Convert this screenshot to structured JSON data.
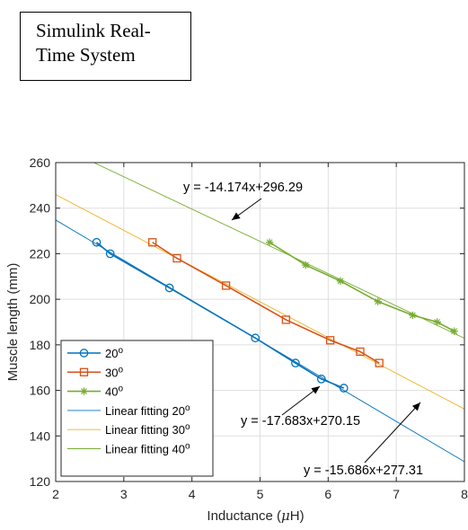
{
  "system_box": {
    "line1": "Simulink Real-",
    "line2": "Time System"
  },
  "chart_data": {
    "type": "line",
    "xlabel": "Inductance (μH)",
    "ylabel": "Muscle length (mm)",
    "xlim": [
      2,
      8
    ],
    "ylim": [
      120,
      260
    ],
    "xticks": [
      2,
      3,
      4,
      5,
      6,
      7,
      8
    ],
    "yticks": [
      120,
      140,
      160,
      180,
      200,
      220,
      240,
      260
    ],
    "grid": true,
    "legend_position": "bottom-left",
    "series": [
      {
        "name": "20°",
        "color": "#0072BD",
        "marker": "circle",
        "x": [
          2.6,
          2.8,
          3.67,
          4.93,
          5.52,
          5.9,
          6.23
        ],
        "y": [
          225,
          220,
          205,
          183,
          172,
          165,
          161
        ]
      },
      {
        "name": "30°",
        "color": "#D95319",
        "marker": "square",
        "x": [
          3.42,
          3.78,
          4.5,
          5.38,
          6.03,
          6.47,
          6.75
        ],
        "y": [
          225,
          218,
          206,
          191,
          182,
          177,
          172
        ]
      },
      {
        "name": "40°",
        "color": "#77AC30",
        "marker": "asterisk",
        "x": [
          5.14,
          5.67,
          6.18,
          6.73,
          7.24,
          7.6,
          7.85
        ],
        "y": [
          225,
          215,
          208,
          199,
          193,
          190,
          186
        ]
      }
    ],
    "fits": [
      {
        "name": "Linear fitting 20°",
        "color": "#0072BD",
        "slope": -17.683,
        "intercept": 270.15,
        "x_range": [
          2,
          8
        ]
      },
      {
        "name": "Linear fitting 30°",
        "color": "#EDB120",
        "slope": -15.686,
        "intercept": 277.31,
        "x_range": [
          2,
          8
        ]
      },
      {
        "name": "Linear fitting 40°",
        "color": "#77AC30",
        "slope": -14.174,
        "intercept": 296.29,
        "x_range": [
          2,
          8
        ]
      }
    ],
    "annotations": [
      {
        "text": "y = -14.174x+296.29"
      },
      {
        "text": "y = -17.683x+270.15"
      },
      {
        "text": "y = -15.686x+277.31"
      }
    ]
  }
}
